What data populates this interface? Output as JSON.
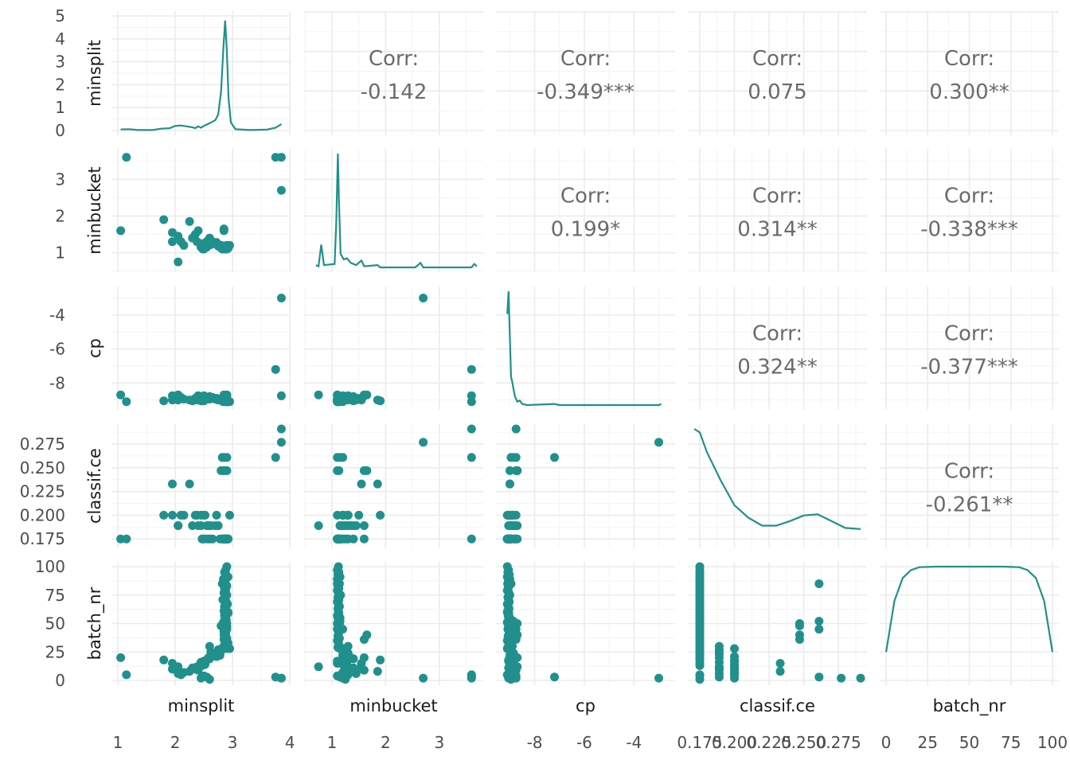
{
  "chart_data": {
    "type": "scatter",
    "variables": [
      "minsplit",
      "minbucket",
      "cp",
      "classif.ce",
      "batch_nr"
    ],
    "correlation_prefix": "Corr:",
    "color": "#21908C",
    "correlations": [
      {
        "row": "minsplit",
        "col": "minbucket",
        "value": "-0.142"
      },
      {
        "row": "minsplit",
        "col": "cp",
        "value": "-0.349***"
      },
      {
        "row": "minsplit",
        "col": "classif.ce",
        "value": "0.075"
      },
      {
        "row": "minsplit",
        "col": "batch_nr",
        "value": "0.300**"
      },
      {
        "row": "minbucket",
        "col": "cp",
        "value": "0.199*"
      },
      {
        "row": "minbucket",
        "col": "classif.ce",
        "value": "0.314**"
      },
      {
        "row": "minbucket",
        "col": "batch_nr",
        "value": "-0.338***"
      },
      {
        "row": "cp",
        "col": "classif.ce",
        "value": "0.324**"
      },
      {
        "row": "cp",
        "col": "batch_nr",
        "value": "-0.377***"
      },
      {
        "row": "classif.ce",
        "col": "batch_nr",
        "value": "-0.261**"
      }
    ],
    "x_ticks": {
      "minsplit": [
        "1",
        "2",
        "3",
        "4"
      ],
      "minbucket": [
        "1",
        "2",
        "3"
      ],
      "cp": [
        "-8",
        "-6",
        "-4"
      ],
      "classif.ce": [
        "0.175",
        "0.200",
        "0.225",
        "0.250",
        "0.275"
      ],
      "batch_nr": [
        "0",
        "25",
        "50",
        "75",
        "100"
      ]
    },
    "y_ticks": {
      "minsplit": [
        "0",
        "1",
        "2",
        "3",
        "4",
        "5"
      ],
      "minbucket": [
        "1",
        "2",
        "3"
      ],
      "cp": [
        "-8",
        "-6",
        "-4"
      ],
      "classif.ce": [
        "0.175",
        "0.200",
        "0.225",
        "0.250",
        "0.275"
      ],
      "batch_nr": [
        "0",
        "25",
        "50",
        "75",
        "100"
      ]
    },
    "ranges": {
      "minsplit": [
        1.0,
        3.9
      ],
      "minbucket": [
        0.6,
        3.7
      ],
      "cp": [
        -9.3,
        -2.6
      ],
      "classif.ce": [
        0.171,
        0.291
      ],
      "batch_nr": [
        0,
        100
      ]
    },
    "density_ylim_minsplit": [
      0,
      5
    ],
    "densities": {
      "minsplit": [
        [
          1.05,
          0.05
        ],
        [
          1.2,
          0.06
        ],
        [
          1.35,
          0.02
        ],
        [
          1.6,
          0.02
        ],
        [
          1.75,
          0.08
        ],
        [
          1.9,
          0.1
        ],
        [
          2.0,
          0.2
        ],
        [
          2.1,
          0.22
        ],
        [
          2.2,
          0.18
        ],
        [
          2.3,
          0.14
        ],
        [
          2.35,
          0.1
        ],
        [
          2.4,
          0.18
        ],
        [
          2.45,
          0.12
        ],
        [
          2.5,
          0.2
        ],
        [
          2.6,
          0.32
        ],
        [
          2.7,
          0.45
        ],
        [
          2.75,
          0.7
        ],
        [
          2.8,
          1.7
        ],
        [
          2.84,
          3.6
        ],
        [
          2.87,
          4.8
        ],
        [
          2.9,
          3.5
        ],
        [
          2.93,
          1.4
        ],
        [
          2.97,
          0.35
        ],
        [
          3.05,
          0.06
        ],
        [
          3.3,
          0.02
        ],
        [
          3.6,
          0.04
        ],
        [
          3.75,
          0.12
        ],
        [
          3.85,
          0.28
        ]
      ],
      "minbucket": [
        [
          0.7,
          0.02
        ],
        [
          0.75,
          0.01
        ],
        [
          0.8,
          0.2
        ],
        [
          0.85,
          0.02
        ],
        [
          1.05,
          0.03
        ],
        [
          1.08,
          0.4
        ],
        [
          1.11,
          1.0
        ],
        [
          1.13,
          0.6
        ],
        [
          1.16,
          0.12
        ],
        [
          1.22,
          0.07
        ],
        [
          1.28,
          0.08
        ],
        [
          1.35,
          0.04
        ],
        [
          1.45,
          0.02
        ],
        [
          1.55,
          0.06
        ],
        [
          1.6,
          0.01
        ],
        [
          1.85,
          0.02
        ],
        [
          1.9,
          0.0
        ],
        [
          2.55,
          0.0
        ],
        [
          2.65,
          0.04
        ],
        [
          2.7,
          0.0
        ],
        [
          3.6,
          0.0
        ],
        [
          3.65,
          0.03
        ],
        [
          3.7,
          0.01
        ]
      ],
      "cp": [
        [
          -9.1,
          0.8
        ],
        [
          -9.05,
          1.0
        ],
        [
          -9.0,
          0.6
        ],
        [
          -8.95,
          0.25
        ],
        [
          -8.9,
          0.2
        ],
        [
          -8.8,
          0.08
        ],
        [
          -8.7,
          0.03
        ],
        [
          -8.6,
          0.04
        ],
        [
          -8.5,
          0.01
        ],
        [
          -8.3,
          0.0
        ],
        [
          -7.2,
          0.01
        ],
        [
          -7.0,
          0.0
        ],
        [
          -3.0,
          0.0
        ],
        [
          -2.9,
          0.01
        ]
      ],
      "classif.ce": [
        [
          0.171,
          1.0
        ],
        [
          0.175,
          0.97
        ],
        [
          0.18,
          0.8
        ],
        [
          0.19,
          0.55
        ],
        [
          0.2,
          0.33
        ],
        [
          0.21,
          0.22
        ],
        [
          0.22,
          0.15
        ],
        [
          0.23,
          0.15
        ],
        [
          0.24,
          0.19
        ],
        [
          0.25,
          0.24
        ],
        [
          0.26,
          0.25
        ],
        [
          0.27,
          0.19
        ],
        [
          0.28,
          0.13
        ],
        [
          0.291,
          0.12
        ]
      ],
      "batch_nr": [
        [
          0,
          0.25
        ],
        [
          5,
          0.7
        ],
        [
          10,
          0.9
        ],
        [
          15,
          0.97
        ],
        [
          20,
          0.995
        ],
        [
          30,
          1.0
        ],
        [
          70,
          1.0
        ],
        [
          80,
          0.995
        ],
        [
          85,
          0.97
        ],
        [
          90,
          0.9
        ],
        [
          95,
          0.7
        ],
        [
          100,
          0.25
        ]
      ]
    },
    "points": {
      "minsplit": [
        2.9,
        2.88,
        2.86,
        2.88,
        2.92,
        2.84,
        2.86,
        2.88,
        2.9,
        2.86,
        2.88,
        2.85,
        2.9,
        2.87,
        2.83,
        2.89,
        2.91,
        2.86,
        2.88,
        2.85,
        2.92,
        2.86,
        2.87,
        2.89,
        2.84,
        2.88,
        2.9,
        2.86,
        2.85,
        2.88,
        2.87,
        2.9,
        2.88,
        2.92,
        2.86,
        2.83,
        2.89,
        2.75,
        2.8,
        2.62,
        2.65,
        2.7,
        2.78,
        2.72,
        2.58,
        2.6,
        2.55,
        2.5,
        2.45,
        2.48,
        2.52,
        2.47,
        2.38,
        2.3,
        2.35,
        2.4,
        2.25,
        2.15,
        2.05,
        2.1,
        2.5,
        2.55,
        2.45,
        2.6,
        2.6,
        2.95,
        1.05,
        1.15,
        1.8,
        1.95,
        1.95,
        2.05,
        2.85,
        2.85,
        2.9,
        2.9,
        2.85,
        3.75,
        3.85,
        3.85,
        2.92,
        2.88,
        2.8,
        2.82
      ],
      "minbucket": [
        1.12,
        1.1,
        1.13,
        1.11,
        1.15,
        1.1,
        1.12,
        1.14,
        1.11,
        1.13,
        1.1,
        1.12,
        1.16,
        1.11,
        1.13,
        1.1,
        1.12,
        1.14,
        1.11,
        1.12,
        1.13,
        1.1,
        1.15,
        1.12,
        1.11,
        1.14,
        1.12,
        1.1,
        1.13,
        1.12,
        1.11,
        1.14,
        1.1,
        1.12,
        1.13,
        1.11,
        1.15,
        1.18,
        1.2,
        1.22,
        1.3,
        1.25,
        1.2,
        1.28,
        1.35,
        1.4,
        1.3,
        1.1,
        1.15,
        1.1,
        1.2,
        1.25,
        1.3,
        1.4,
        1.5,
        1.6,
        1.85,
        1.2,
        1.45,
        1.3,
        1.1,
        1.15,
        1.2,
        1.25,
        1.3,
        1.2,
        1.6,
        3.6,
        1.9,
        1.55,
        1.3,
        0.75,
        1.6,
        1.65,
        1.2,
        1.1,
        1.15,
        3.6,
        2.7,
        3.6,
        1.12,
        1.11,
        1.13,
        1.1
      ],
      "cp": [
        -9.1,
        -9.05,
        -9.08,
        -9.02,
        -9.1,
        -9.0,
        -9.06,
        -9.09,
        -9.03,
        -9.07,
        -9.1,
        -9.04,
        -9.0,
        -9.08,
        -9.05,
        -9.02,
        -9.1,
        -9.06,
        -9.03,
        -9.09,
        -9.04,
        -9.07,
        -9.0,
        -9.05,
        -9.1,
        -9.02,
        -9.06,
        -9.08,
        -9.03,
        -9.0,
        -9.07,
        -9.05,
        -9.1,
        -9.04,
        -9.02,
        -9.08,
        -9.0,
        -9.0,
        -8.95,
        -8.9,
        -8.85,
        -8.95,
        -9.0,
        -8.9,
        -8.85,
        -8.8,
        -8.95,
        -9.05,
        -9.0,
        -8.95,
        -8.9,
        -8.8,
        -9.0,
        -9.05,
        -8.9,
        -8.75,
        -9.0,
        -8.95,
        -9.0,
        -8.85,
        -8.75,
        -8.9,
        -9.05,
        -8.95,
        -8.9,
        -9.1,
        -8.7,
        -9.1,
        -9.05,
        -9.0,
        -8.75,
        -8.7,
        -8.75,
        -8.7,
        -8.75,
        -8.7,
        -8.85,
        -7.2,
        -3.0,
        -8.75,
        -9.1,
        -9.05,
        -9.0,
        -8.95
      ],
      "classif.ce": [
        0.175,
        0.175,
        0.175,
        0.175,
        0.175,
        0.175,
        0.175,
        0.175,
        0.175,
        0.175,
        0.175,
        0.175,
        0.175,
        0.175,
        0.175,
        0.175,
        0.175,
        0.175,
        0.175,
        0.175,
        0.175,
        0.175,
        0.175,
        0.175,
        0.175,
        0.175,
        0.175,
        0.175,
        0.175,
        0.175,
        0.175,
        0.175,
        0.175,
        0.175,
        0.175,
        0.175,
        0.175,
        0.189,
        0.175,
        0.189,
        0.175,
        0.189,
        0.175,
        0.2,
        0.189,
        0.175,
        0.175,
        0.2,
        0.189,
        0.175,
        0.2,
        0.175,
        0.2,
        0.189,
        0.2,
        0.189,
        0.233,
        0.2,
        0.189,
        0.2,
        0.175,
        0.189,
        0.2,
        0.175,
        0.189,
        0.2,
        0.175,
        0.175,
        0.2,
        0.233,
        0.2,
        0.189,
        0.247,
        0.247,
        0.261,
        0.247,
        0.261,
        0.261,
        0.277,
        0.291,
        0.175,
        0.175,
        0.247,
        0.261
      ],
      "batch_nr": [
        100,
        97,
        95,
        93,
        91,
        89,
        87,
        85,
        83,
        81,
        79,
        77,
        75,
        73,
        71,
        69,
        67,
        65,
        63,
        61,
        59,
        57,
        55,
        53,
        51,
        49,
        47,
        45,
        43,
        41,
        39,
        37,
        35,
        33,
        31,
        29,
        28,
        27,
        26,
        25,
        24,
        23,
        22,
        21,
        20,
        19,
        18,
        17,
        16,
        15,
        14,
        13,
        12,
        11,
        10,
        9,
        8,
        7,
        6,
        5,
        4,
        3,
        2,
        1,
        30,
        28,
        20,
        5,
        18,
        15,
        10,
        12,
        36,
        40,
        45,
        50,
        52,
        3,
        2,
        2,
        60,
        55,
        48,
        85
      ]
    }
  }
}
